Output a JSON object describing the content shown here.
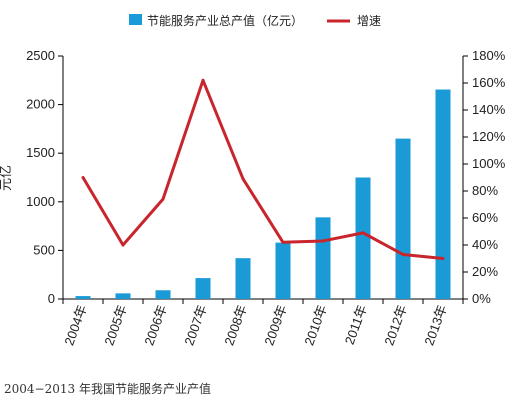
{
  "chart_data": {
    "type": "bar",
    "categories": [
      "2004年",
      "2005年",
      "2006年",
      "2007年",
      "2008年",
      "2009年",
      "2010年",
      "2011年",
      "2012年",
      "2013年"
    ],
    "series": [
      {
        "name": "节能服务产业总产值（亿元）",
        "type": "bar",
        "axis": "left",
        "color": "#1a9ad6",
        "values": [
          30,
          58,
          90,
          215,
          420,
          580,
          840,
          1250,
          1650,
          2155
        ]
      },
      {
        "name": "增速",
        "type": "line",
        "axis": "right",
        "color": "#c9252c",
        "values": [
          90,
          40,
          74,
          162,
          89,
          42,
          43,
          49,
          33,
          30
        ]
      }
    ],
    "ylabel": "元亿",
    "ylim": [
      0,
      2500
    ],
    "yticks": [
      "0",
      "500",
      "1000",
      "1500",
      "2000",
      "2500"
    ],
    "y2lim": [
      0,
      180
    ],
    "y2ticks": [
      "0%",
      "20%",
      "40%",
      "60%",
      "80%",
      "100%",
      "120%",
      "140%",
      "160%",
      "180%"
    ],
    "legend": "top-center",
    "grid": false,
    "caption": "2004−2013 年我国节能服务产业产值"
  }
}
